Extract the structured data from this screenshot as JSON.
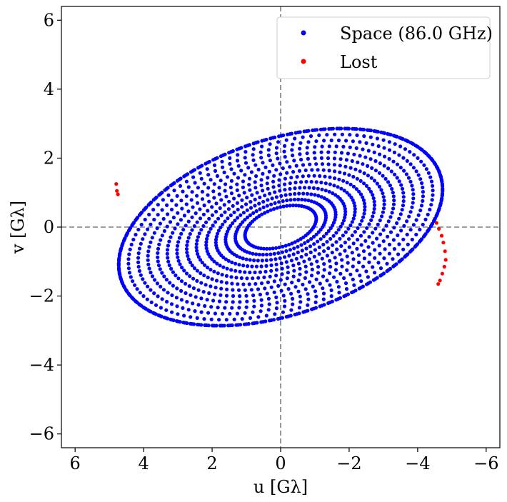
{
  "chart_data": {
    "type": "scatter",
    "title": "",
    "xlabel": "u [Gλ]",
    "ylabel": "v [Gλ]",
    "xlim": [
      6.4,
      -6.4
    ],
    "ylim": [
      -6.4,
      6.4
    ],
    "x_inverted": true,
    "xticks": [
      6,
      4,
      2,
      0,
      -2,
      -4,
      -6
    ],
    "yticks": [
      -6,
      -4,
      -2,
      0,
      2,
      4,
      6
    ],
    "xtick_labels": [
      "6",
      "4",
      "2",
      "0",
      "−2",
      "−4",
      "−6"
    ],
    "ytick_labels": [
      "−6",
      "−4",
      "−2",
      "0",
      "2",
      "4",
      "6"
    ],
    "grid": false,
    "reference_lines": {
      "x": 0,
      "y": 0,
      "style": "dashed",
      "color": "#808080"
    },
    "legend_position": "top-right",
    "coverage": {
      "description_values": {
        "outer_semi_major_axis": 4.9,
        "outer_semi_minor_axis": 2.55,
        "ellipse_tilt_deg": 18,
        "inner_tracks_min_scale": 0.22,
        "num_tracks": 14,
        "points_per_track": 120
      }
    },
    "series": [
      {
        "name": "Space (86.0 GHz)",
        "color": "#0000ff",
        "marker": "circle",
        "points": []
      },
      {
        "name": "Lost",
        "color": "#ff0000",
        "marker": "circle",
        "points": [
          [
            4.8,
            1.25
          ],
          [
            4.78,
            1.05
          ],
          [
            4.75,
            0.95
          ],
          [
            -4.55,
            0.12
          ],
          [
            -4.62,
            -0.05
          ],
          [
            -4.7,
            -0.25
          ],
          [
            -4.75,
            -0.45
          ],
          [
            -4.8,
            -0.7
          ],
          [
            -4.82,
            -0.95
          ],
          [
            -4.78,
            -1.15
          ],
          [
            -4.72,
            -1.35
          ],
          [
            -4.65,
            -1.55
          ],
          [
            -4.6,
            -1.65
          ]
        ]
      }
    ]
  }
}
